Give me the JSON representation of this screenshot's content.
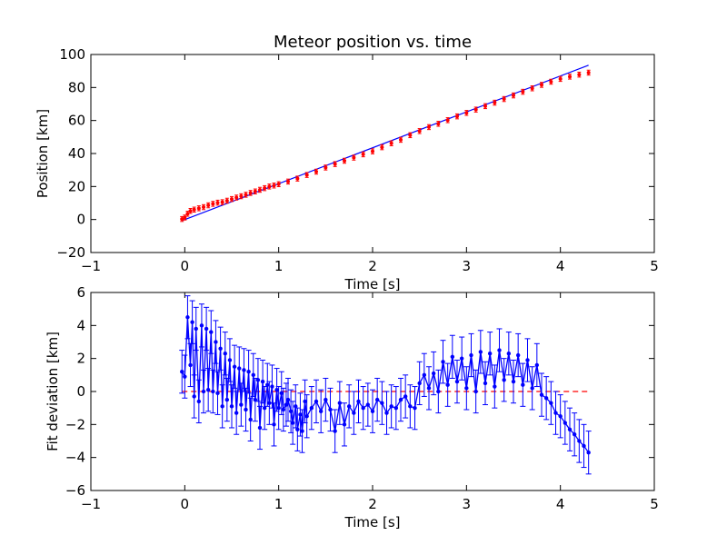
{
  "chart_data": [
    {
      "type": "scatter",
      "title": "Meteor position vs. time",
      "xlabel": "Time [s]",
      "ylabel": "Position [km]",
      "xlim": [
        -1,
        5
      ],
      "ylim": [
        -20,
        100
      ],
      "xticks": [
        "−1",
        "0",
        "1",
        "2",
        "3",
        "4",
        "5"
      ],
      "yticks": [
        "−20",
        "0",
        "20",
        "40",
        "60",
        "80",
        "100"
      ],
      "grid": false,
      "colors": {
        "data": "#ff0000",
        "fit": "#0000ff"
      },
      "series": [
        {
          "kind": "points-with-errorbars",
          "t": [
            -0.03,
            0.0,
            0.03,
            0.06,
            0.1,
            0.15,
            0.2,
            0.25,
            0.3,
            0.35,
            0.4,
            0.45,
            0.5,
            0.55,
            0.6,
            0.65,
            0.7,
            0.75,
            0.8,
            0.85,
            0.9,
            0.95,
            1.0,
            1.1,
            1.2,
            1.3,
            1.4,
            1.5,
            1.6,
            1.7,
            1.8,
            1.9,
            2.0,
            2.1,
            2.2,
            2.3,
            2.4,
            2.5,
            2.6,
            2.7,
            2.8,
            2.9,
            3.0,
            3.1,
            3.2,
            3.3,
            3.4,
            3.5,
            3.6,
            3.7,
            3.8,
            3.9,
            4.0,
            4.1,
            4.2,
            4.3
          ],
          "y": [
            0.3,
            1.2,
            3.5,
            5.2,
            6.0,
            6.8,
            7.5,
            8.6,
            9.5,
            10.2,
            10.5,
            11.4,
            12.4,
            13.3,
            14.1,
            15.0,
            16.1,
            17.0,
            18.0,
            19.0,
            20.0,
            20.6,
            21.4,
            23.0,
            24.8,
            27.0,
            29.0,
            31.5,
            33.6,
            35.6,
            37.5,
            39.5,
            41.3,
            43.8,
            46.2,
            48.3,
            51.1,
            53.6,
            56.0,
            58.0,
            60.2,
            62.5,
            64.6,
            66.6,
            68.7,
            70.8,
            73.0,
            75.2,
            77.4,
            79.5,
            81.6,
            83.5,
            85.2,
            86.6,
            87.8,
            89.0
          ],
          "yerr": 1.5
        },
        {
          "kind": "fit-line",
          "t": [
            -0.03,
            4.3
          ],
          "y": [
            -0.7,
            93.5
          ]
        }
      ]
    },
    {
      "type": "line",
      "title": "",
      "xlabel": "Time [s]",
      "ylabel": "Fit deviation [km]",
      "xlim": [
        -1,
        5
      ],
      "ylim": [
        -6,
        6
      ],
      "xticks": [
        "−1",
        "0",
        "1",
        "2",
        "3",
        "4",
        "5"
      ],
      "yticks": [
        "−6",
        "−4",
        "−2",
        "0",
        "2",
        "4",
        "6"
      ],
      "grid": false,
      "colors": {
        "deviation": "#0000ff",
        "zero": "#ff0000"
      },
      "series": [
        {
          "kind": "line-with-errorbars",
          "t": [
            -0.03,
            0.0,
            0.03,
            0.06,
            0.08,
            0.1,
            0.12,
            0.15,
            0.18,
            0.2,
            0.23,
            0.25,
            0.28,
            0.3,
            0.33,
            0.35,
            0.38,
            0.4,
            0.43,
            0.45,
            0.48,
            0.5,
            0.53,
            0.55,
            0.58,
            0.6,
            0.63,
            0.65,
            0.68,
            0.7,
            0.73,
            0.75,
            0.78,
            0.8,
            0.83,
            0.85,
            0.88,
            0.9,
            0.93,
            0.95,
            0.98,
            1.0,
            1.03,
            1.05,
            1.08,
            1.1,
            1.13,
            1.15,
            1.18,
            1.2,
            1.23,
            1.25,
            1.28,
            1.3,
            1.35,
            1.4,
            1.45,
            1.5,
            1.55,
            1.6,
            1.65,
            1.7,
            1.75,
            1.8,
            1.85,
            1.9,
            1.95,
            2.0,
            2.05,
            2.1,
            2.15,
            2.2,
            2.25,
            2.3,
            2.35,
            2.4,
            2.45,
            2.5,
            2.55,
            2.6,
            2.65,
            2.7,
            2.75,
            2.8,
            2.85,
            2.9,
            2.95,
            3.0,
            3.05,
            3.1,
            3.15,
            3.2,
            3.25,
            3.3,
            3.35,
            3.4,
            3.45,
            3.5,
            3.55,
            3.6,
            3.65,
            3.7,
            3.75,
            3.8,
            3.85,
            3.9,
            3.95,
            4.0,
            4.05,
            4.1,
            4.15,
            4.2,
            4.25,
            4.3
          ],
          "y": [
            1.2,
            0.9,
            4.5,
            1.6,
            4.2,
            -0.3,
            3.8,
            -0.6,
            4.0,
            0.0,
            3.8,
            0.1,
            3.6,
            0.0,
            3.0,
            -0.1,
            2.6,
            -0.9,
            2.3,
            -0.5,
            1.9,
            -0.9,
            1.5,
            -1.3,
            1.4,
            -0.8,
            1.3,
            -1.1,
            1.2,
            -1.7,
            1.0,
            -0.5,
            0.7,
            -2.2,
            0.6,
            -1.0,
            0.4,
            -0.7,
            0.3,
            -2.0,
            0.1,
            -1.0,
            -0.1,
            -1.1,
            -0.8,
            -0.5,
            -1.2,
            -1.9,
            -0.9,
            -2.3,
            -1.4,
            -2.4,
            -0.6,
            -1.5,
            -1.0,
            -0.6,
            -1.2,
            -0.5,
            -1.1,
            -2.4,
            -0.7,
            -2.0,
            -0.9,
            -1.3,
            -0.6,
            -1.0,
            -0.8,
            -1.2,
            -0.5,
            -0.7,
            -1.3,
            -0.9,
            -1.0,
            -0.5,
            -0.3,
            -0.9,
            -1.0,
            0.5,
            1.0,
            0.2,
            1.1,
            0.0,
            1.8,
            0.4,
            2.1,
            0.6,
            2.0,
            0.2,
            2.2,
            0.0,
            2.4,
            0.5,
            2.3,
            0.3,
            2.5,
            0.7,
            2.3,
            0.6,
            2.2,
            0.4,
            1.9,
            0.2,
            1.6,
            -0.2,
            -0.4,
            -0.7,
            -1.3,
            -1.5,
            -1.9,
            -2.3,
            -2.6,
            -3.0,
            -3.3,
            -3.7
          ],
          "yerr": 1.3
        },
        {
          "kind": "zero-line",
          "t": [
            -0.03,
            4.3
          ],
          "y": [
            0,
            0
          ]
        }
      ]
    }
  ]
}
